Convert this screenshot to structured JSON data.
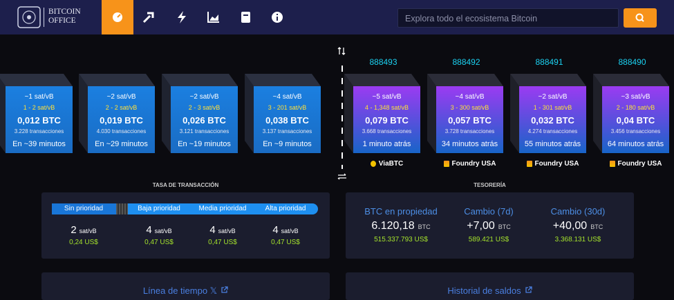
{
  "header": {
    "brand": [
      "BITCOIN",
      "OFFICE"
    ],
    "search_placeholder": "Explora todo el ecosistema Bitcoin"
  },
  "mempool_blocks": [
    {
      "fee": "~1 sat/vB",
      "fee_range": "1 - 2 sat/vB",
      "size": "0,012 BTC",
      "transactions": "3.228 transacciones",
      "eta": "En ~39 minutos"
    },
    {
      "fee": "~2 sat/vB",
      "fee_range": "2 - 2 sat/vB",
      "size": "0,019 BTC",
      "transactions": "4.030 transacciones",
      "eta": "En ~29 minutos"
    },
    {
      "fee": "~2 sat/vB",
      "fee_range": "2 - 3 sat/vB",
      "size": "0,026 BTC",
      "transactions": "3.121 transacciones",
      "eta": "En ~19 minutos"
    },
    {
      "fee": "~4 sat/vB",
      "fee_range": "3 - 201 sat/vB",
      "size": "0,038 BTC",
      "transactions": "3.137 transacciones",
      "eta": "En ~9 minutos"
    }
  ],
  "mined_blocks": [
    {
      "height": "888493",
      "fee": "~5 sat/vB",
      "fee_range": "4 - 1,348 sat/vB",
      "size": "0,079 BTC",
      "transactions": "3.668 transacciones",
      "time": "1 minuto atrás",
      "miner": "ViaBTC"
    },
    {
      "height": "888492",
      "fee": "~4 sat/vB",
      "fee_range": "3 - 300 sat/vB",
      "size": "0,057 BTC",
      "transactions": "3.728 transacciones",
      "time": "34 minutos atrás",
      "miner": "Foundry USA"
    },
    {
      "height": "888491",
      "fee": "~2 sat/vB",
      "fee_range": "1 - 301 sat/vB",
      "size": "0,032 BTC",
      "transactions": "4.274 transacciones",
      "time": "55 minutos atrás",
      "miner": "Foundry USA"
    },
    {
      "height": "888490",
      "fee": "~3 sat/vB",
      "fee_range": "2 - 180 sat/vB",
      "size": "0,04 BTC",
      "transactions": "3.456 transacciones",
      "time": "64 minutos atrás",
      "miner": "Foundry USA"
    }
  ],
  "fees": {
    "title": "TASA DE TRANSACCIÓN",
    "levels": [
      {
        "label": "Sin prioridad",
        "rate": "2",
        "unit": "sat/vB",
        "usd": "0,24 US$"
      },
      {
        "label": "Baja prioridad",
        "rate": "4",
        "unit": "sat/vB",
        "usd": "0,47 US$"
      },
      {
        "label": "Media prioridad",
        "rate": "4",
        "unit": "sat/vB",
        "usd": "0,47 US$"
      },
      {
        "label": "Alta prioridad",
        "rate": "4",
        "unit": "sat/vB",
        "usd": "0,47 US$"
      }
    ]
  },
  "treasury": {
    "title": "TESORERÍA",
    "items": [
      {
        "label": "BTC en propiedad",
        "value": "6.120,18",
        "unit": "BTC",
        "usd": "515.337.793 US$"
      },
      {
        "label": "Cambio (7d)",
        "value": "+7,00",
        "unit": "BTC",
        "usd": "589.421 US$"
      },
      {
        "label": "Cambio (30d)",
        "value": "+40,00",
        "unit": "BTC",
        "usd": "3.368.131 US$"
      }
    ]
  },
  "links": [
    "Línea de tiempo 𝕏",
    "Historial de saldos"
  ]
}
